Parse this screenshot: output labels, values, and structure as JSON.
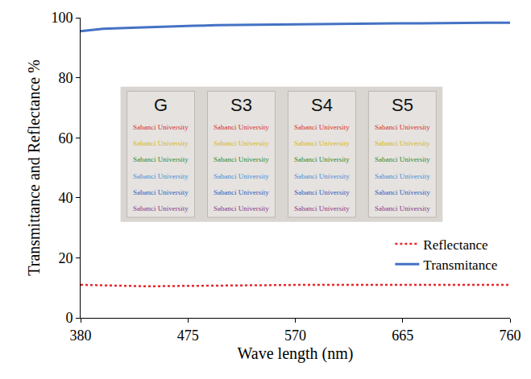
{
  "chart_data": {
    "type": "line",
    "x_label": "Wave length (nm)",
    "y_label": "Transmittance and Reflectance %",
    "x": [
      380,
      400,
      420,
      440,
      460,
      480,
      500,
      520,
      540,
      560,
      580,
      600,
      620,
      640,
      660,
      680,
      700,
      720,
      740,
      760
    ],
    "series": [
      {
        "name": "Reflectance",
        "color": "#e8262b",
        "line_style": "dotted",
        "values": [
          11.0,
          10.8,
          10.6,
          10.5,
          10.6,
          10.7,
          10.8,
          10.9,
          10.9,
          11.0,
          11.0,
          11.0,
          11.0,
          11.0,
          11.0,
          11.0,
          11.0,
          11.0,
          11.0,
          11.0
        ]
      },
      {
        "name": "Transmitance",
        "color": "#4472c4",
        "line_style": "solid",
        "values": [
          95.5,
          96.3,
          96.6,
          96.9,
          97.1,
          97.3,
          97.5,
          97.6,
          97.7,
          97.8,
          97.9,
          97.9,
          98.0,
          98.0,
          98.1,
          98.1,
          98.2,
          98.2,
          98.3,
          98.3
        ]
      }
    ],
    "xlim": [
      380,
      760
    ],
    "xticks": [
      380,
      475,
      570,
      665,
      760
    ],
    "ylim": [
      0,
      100
    ],
    "yticks": [
      0,
      20,
      40,
      60,
      80,
      100
    ],
    "grid": false,
    "legend": "lower right",
    "inset": {
      "panels": [
        "G",
        "S3",
        "S4",
        "S5"
      ],
      "lines": [
        {
          "text": "Sabanci University",
          "color": "#d9302c"
        },
        {
          "text": "Sabanci University",
          "color": "#d8b820"
        },
        {
          "text": "Sabanci University",
          "color": "#2e8b2e"
        },
        {
          "text": "Sabanci University",
          "color": "#4a8fd8"
        },
        {
          "text": "Sabanci University",
          "color": "#3060c0"
        },
        {
          "text": "Sabanci University",
          "color": "#8a3a8a"
        }
      ]
    }
  }
}
